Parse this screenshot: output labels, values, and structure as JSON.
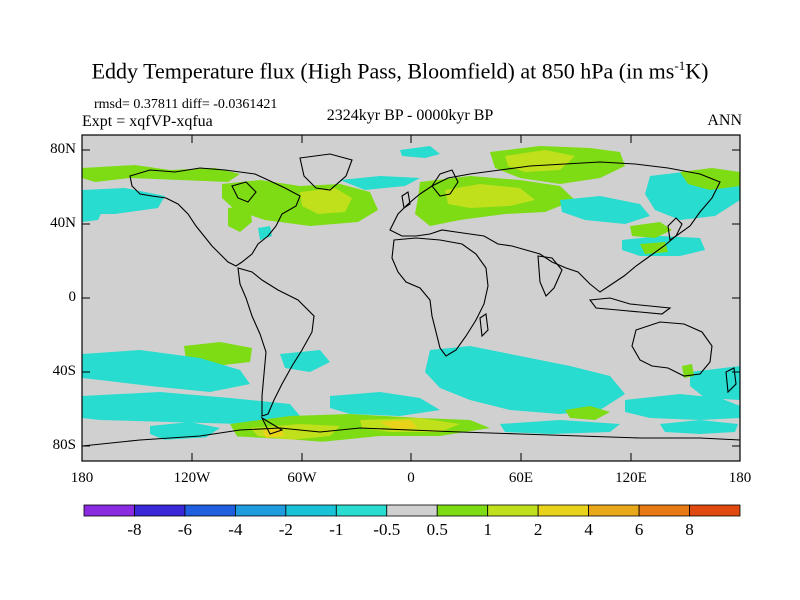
{
  "title": {
    "main": "Eddy Temperature flux (High Pass, Bloomfield) at 850 hPa (in ms",
    "sup": "-1",
    "tail": "K)"
  },
  "stats": "rmsd= 0.37811  diff= -0.0361421",
  "expt": "Expt = xqfVP-xqfua",
  "period": "2324kyr BP - 0000kyr BP",
  "season": "ANN",
  "lat_labels": [
    "80N",
    "40N",
    "0",
    "40S",
    "80S"
  ],
  "lon_labels": [
    "180",
    "120W",
    "60W",
    "0",
    "60E",
    "120E",
    "180"
  ],
  "colorbar": {
    "labels": [
      "-8",
      "-6",
      "-4",
      "-2",
      "-1",
      "-0.5",
      "0.5",
      "1",
      "2",
      "4",
      "6",
      "8"
    ],
    "colors": [
      "#8a2be2",
      "#3b28d6",
      "#1f5fe0",
      "#1f9be0",
      "#19c2d6",
      "#28dccf",
      "#d0d0d0",
      "#7ddc14",
      "#c0e01c",
      "#e8d21a",
      "#e8a81a",
      "#e87a14",
      "#e04a10"
    ]
  },
  "colors": {
    "land_bg": "#d0d0d0",
    "neg_half": "#28dccf",
    "pos_half": "#7ddc14",
    "pos_one": "#c0e01c",
    "pos_two": "#e8d21a"
  }
}
